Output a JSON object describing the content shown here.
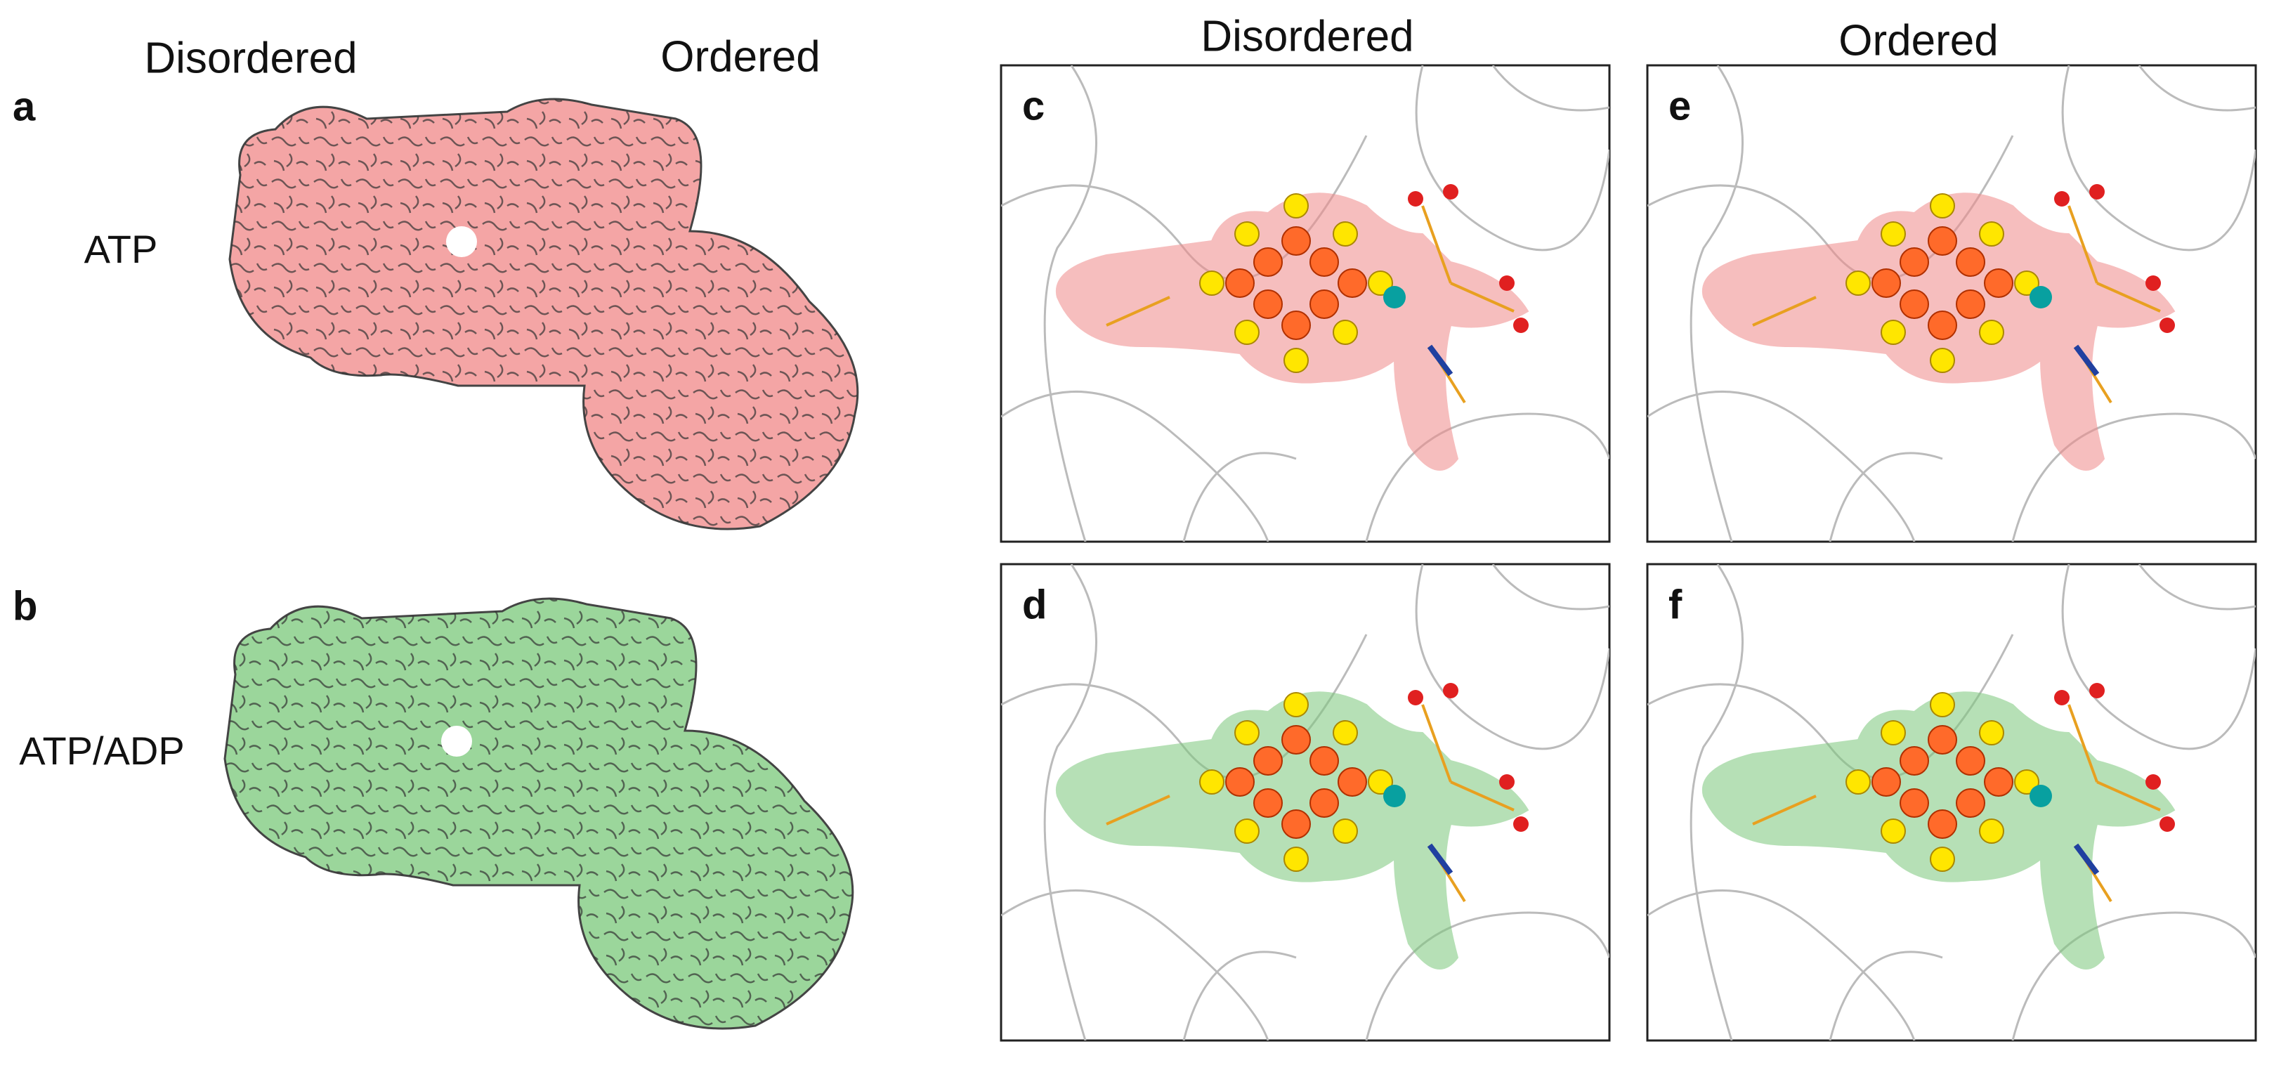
{
  "column_headers": {
    "map": [
      "Disordered",
      "Ordered"
    ],
    "site": [
      "Disordered",
      "Ordered"
    ]
  },
  "maps": [
    {
      "label": "a",
      "row_label": "ATP"
    },
    {
      "label": "b",
      "row_label": "ATP/ADP"
    }
  ],
  "sites": [
    {
      "label": "c"
    },
    {
      "label": "d"
    },
    {
      "label": "e"
    },
    {
      "label": "f"
    }
  ]
}
